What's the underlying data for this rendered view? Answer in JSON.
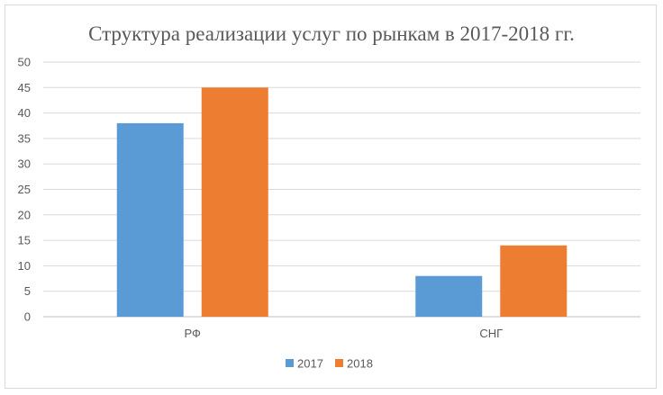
{
  "chart_data": {
    "type": "bar",
    "title": "Структура реализации услуг по рынкам в 2017-2018 гг.",
    "categories": [
      "РФ",
      "СНГ"
    ],
    "series": [
      {
        "name": "2017",
        "color": "#5B9BD5",
        "values": [
          38,
          8
        ]
      },
      {
        "name": "2018",
        "color": "#ED7D31",
        "values": [
          45,
          14
        ]
      }
    ],
    "ylim": [
      0,
      50
    ],
    "yticks": [
      0,
      5,
      10,
      15,
      20,
      25,
      30,
      35,
      40,
      45,
      50
    ],
    "grid": true,
    "legend_position": "bottom",
    "xlabel": "",
    "ylabel": ""
  }
}
